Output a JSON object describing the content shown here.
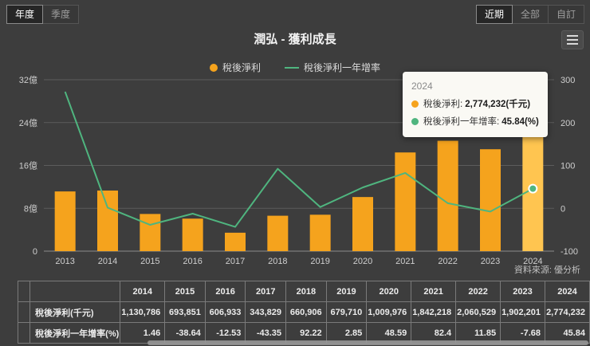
{
  "controls": {
    "period_tabs": [
      {
        "label": "年度",
        "active": true
      },
      {
        "label": "季度",
        "active": false
      }
    ],
    "range_tabs": [
      {
        "label": "近期",
        "active": true
      },
      {
        "label": "全部",
        "active": false
      },
      {
        "label": "自訂",
        "active": false
      }
    ]
  },
  "header": {
    "title": "潤弘 - 獲利成長"
  },
  "legend": [
    {
      "label": "稅後淨利",
      "type": "circle",
      "color": "#f5a31d"
    },
    {
      "label": "稅後淨利一年增率",
      "type": "line",
      "color": "#4fb57f"
    }
  ],
  "chart_data": {
    "type": "bar+line combo",
    "categories": [
      "2013",
      "2014",
      "2015",
      "2016",
      "2017",
      "2018",
      "2019",
      "2020",
      "2021",
      "2022",
      "2023",
      "2024"
    ],
    "series": [
      {
        "name": "稅後淨利",
        "type": "bar",
        "unit": "千元",
        "axis": "left",
        "color": "#f5a31d",
        "highlight_color": "#ffc550",
        "highlight_index": 11,
        "values": [
          1114500,
          1130786,
          693851,
          606933,
          343829,
          660906,
          679710,
          1009976,
          1842218,
          2060529,
          1902201,
          2774232
        ]
      },
      {
        "name": "稅後淨利一年增率",
        "type": "line",
        "unit": "%",
        "axis": "right",
        "color": "#4fb57f",
        "marker_index": 11,
        "values": [
          272,
          1.46,
          -38.64,
          -12.53,
          -43.35,
          92.22,
          2.85,
          48.59,
          82.4,
          11.85,
          -7.68,
          45.84
        ]
      }
    ],
    "left_axis": {
      "ticks": [
        "0",
        "8億",
        "16億",
        "24億",
        "32億"
      ],
      "min": 0,
      "max": 3200000
    },
    "right_axis": {
      "ticks": [
        "-100",
        "0",
        "100",
        "200",
        "300"
      ],
      "min": -100,
      "max": 300
    },
    "grid": true,
    "legend_position": "top-center"
  },
  "tooltip": {
    "title": "2024",
    "rows": [
      {
        "marker_color": "#f5a31d",
        "label": "稅後淨利:",
        "value": "2,774,232(千元)"
      },
      {
        "marker_color": "#4fb57f",
        "label": "稅後淨利一年增率:",
        "value": "45.84(%)"
      }
    ]
  },
  "source": "資料來源: 優分析",
  "table": {
    "years": [
      "2014",
      "2015",
      "2016",
      "2017",
      "2018",
      "2019",
      "2020",
      "2021",
      "2022",
      "2023",
      "2024"
    ],
    "rows": [
      {
        "label": "稅後淨利(千元)",
        "values": [
          "1,130,786",
          "693,851",
          "606,933",
          "343,829",
          "660,906",
          "679,710",
          "1,009,976",
          "1,842,218",
          "2,060,529",
          "1,902,201",
          "2,774,232"
        ]
      },
      {
        "label": "稅後淨利一年增率(%)",
        "values": [
          "1.46",
          "-38.64",
          "-12.53",
          "-43.35",
          "92.22",
          "2.85",
          "48.59",
          "82.4",
          "11.85",
          "-7.68",
          "45.84"
        ]
      }
    ]
  }
}
